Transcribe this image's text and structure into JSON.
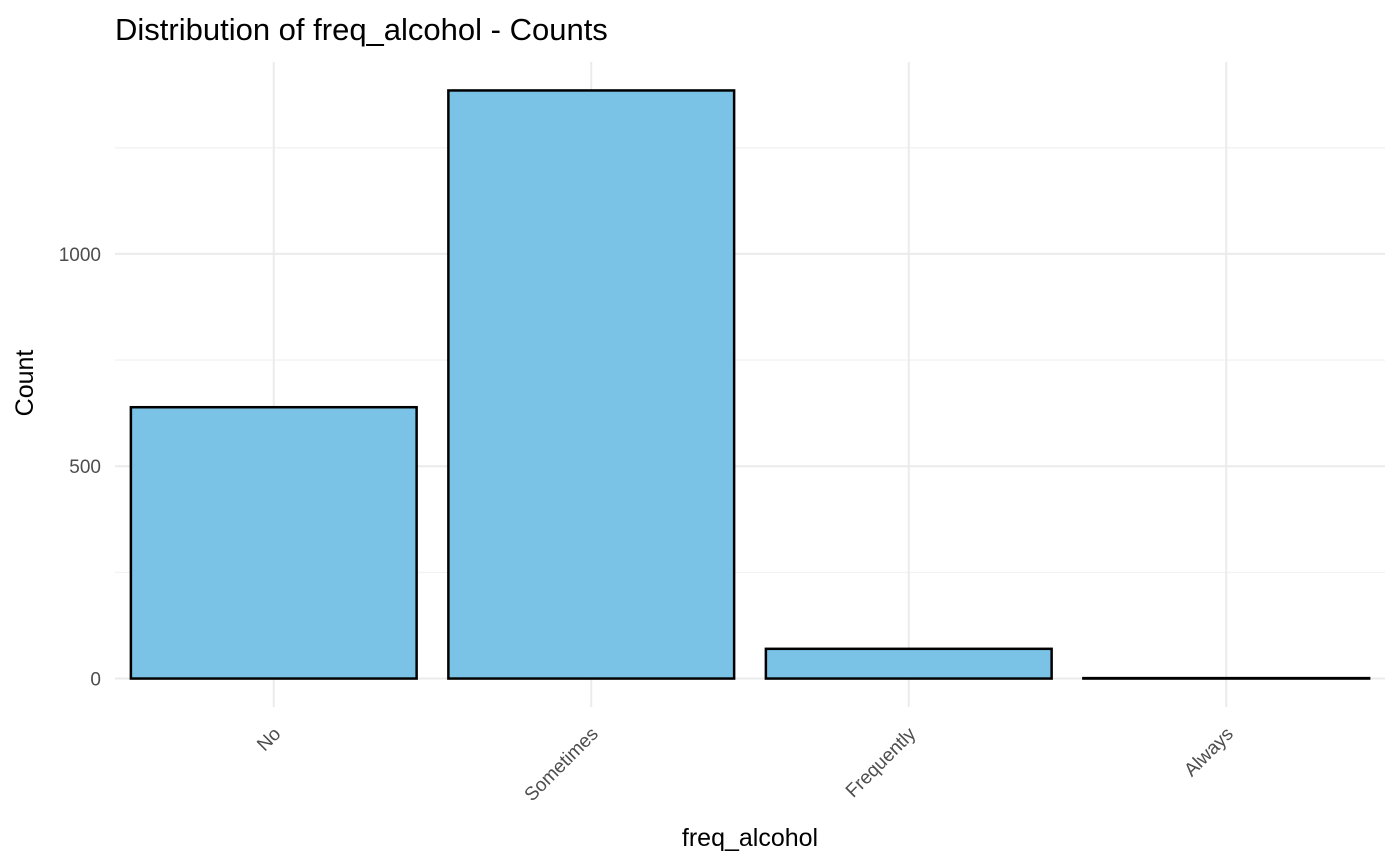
{
  "chart_data": {
    "type": "bar",
    "title": "Distribution of freq_alcohol - Counts",
    "xlabel": "freq_alcohol",
    "ylabel": "Count",
    "categories": [
      "No",
      "Sometimes",
      "Frequently",
      "Always"
    ],
    "values": [
      639,
      1385,
      70,
      1
    ],
    "ylim": [
      -67,
      1452
    ],
    "yticks": [
      0,
      500,
      1000
    ],
    "yticks_minor": [
      250,
      750,
      1250
    ],
    "ytick_labels": [
      "0",
      "500",
      "1000"
    ],
    "bar_fill": "#7AC2E6",
    "bar_outline": "#000000",
    "grid": true,
    "legend": "none",
    "xtick_rotation": 45
  }
}
